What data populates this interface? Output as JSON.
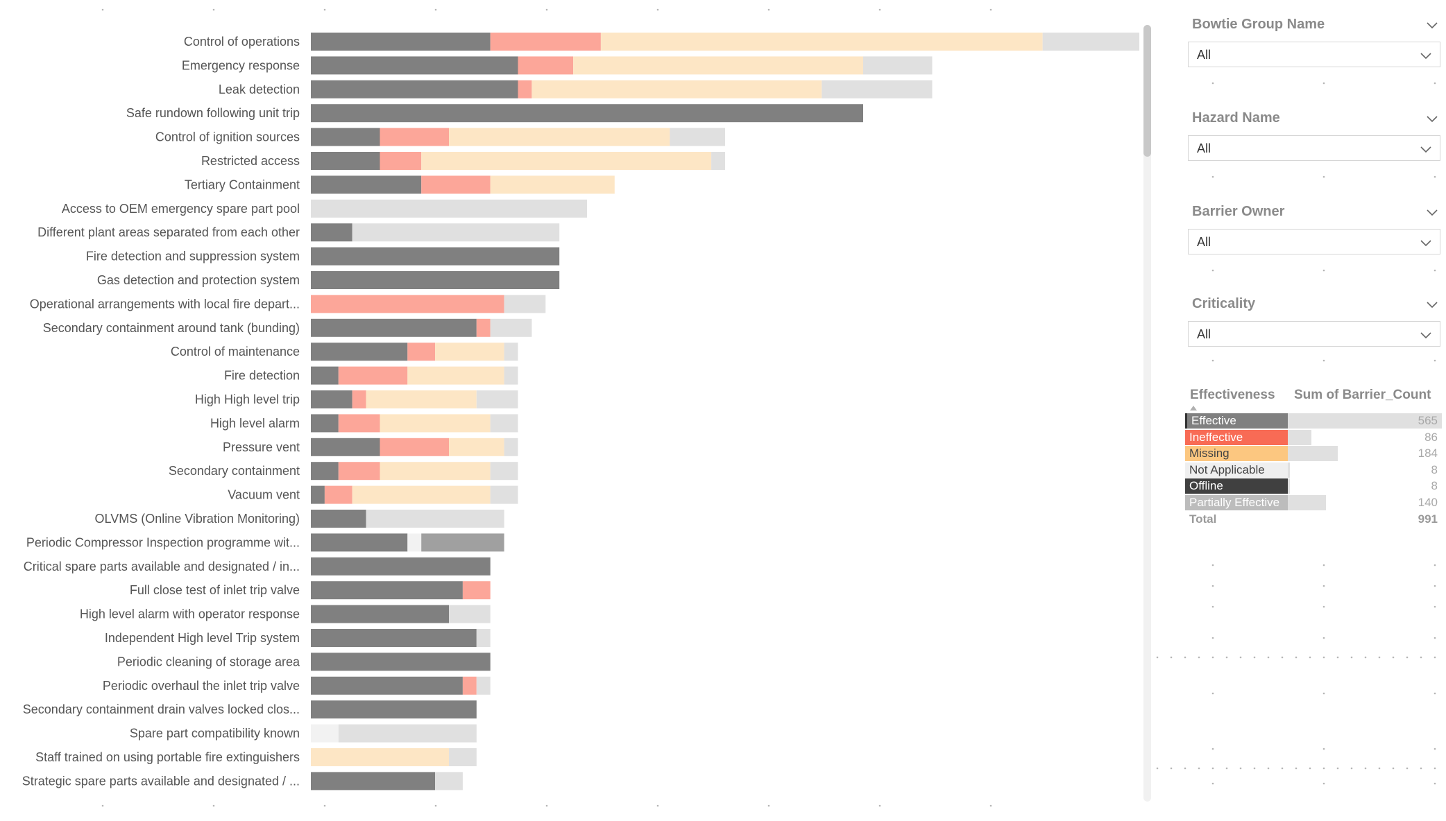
{
  "chart_data": {
    "type": "stacked-bar-horizontal",
    "series": [
      {
        "name": "Effective",
        "color": "#808080"
      },
      {
        "name": "Ineffective",
        "color": "#fca699"
      },
      {
        "name": "Missing",
        "color": "#fde6c5"
      },
      {
        "name": "Not Applicable",
        "color": "#f2f2f2"
      },
      {
        "name": "Offline",
        "color": "#a0a0a0"
      },
      {
        "name": "Partially Effective",
        "color": "#e0e0e0"
      }
    ],
    "categories": [
      {
        "label": "Control of operations",
        "values": [
          13,
          8,
          32,
          0,
          0,
          7
        ]
      },
      {
        "label": "Emergency response",
        "values": [
          15,
          4,
          21,
          0,
          0,
          5
        ]
      },
      {
        "label": "Leak detection",
        "values": [
          15,
          1,
          21,
          0,
          0,
          8
        ]
      },
      {
        "label": "Safe rundown following unit trip",
        "values": [
          40,
          0,
          0,
          0,
          0,
          0
        ]
      },
      {
        "label": "Control of ignition sources",
        "values": [
          5,
          5,
          16,
          0,
          0,
          4
        ]
      },
      {
        "label": "Restricted access",
        "values": [
          5,
          3,
          21,
          0,
          0,
          1
        ]
      },
      {
        "label": "Tertiary Containment",
        "values": [
          8,
          5,
          9,
          0,
          0,
          0
        ]
      },
      {
        "label": "Access to OEM emergency spare part pool",
        "values": [
          0,
          0,
          0,
          0,
          0,
          20
        ]
      },
      {
        "label": "Different plant areas separated from each other",
        "values": [
          3,
          0,
          0,
          0,
          0,
          15
        ]
      },
      {
        "label": "Fire detection and suppression system",
        "values": [
          18,
          0,
          0,
          0,
          0,
          0
        ]
      },
      {
        "label": "Gas detection and protection system",
        "values": [
          18,
          0,
          0,
          0,
          0,
          0
        ]
      },
      {
        "label": "Operational arrangements with local fire depart...",
        "values": [
          0,
          14,
          0,
          0,
          0,
          3
        ]
      },
      {
        "label": "Secondary containment around tank (bunding)",
        "values": [
          12,
          1,
          0,
          0,
          0,
          3
        ]
      },
      {
        "label": "Control of maintenance",
        "values": [
          7,
          2,
          5,
          0,
          0,
          1
        ]
      },
      {
        "label": "Fire detection",
        "values": [
          2,
          5,
          7,
          0,
          0,
          1
        ]
      },
      {
        "label": "High High level trip",
        "values": [
          3,
          1,
          8,
          0,
          0,
          3
        ]
      },
      {
        "label": "High level alarm",
        "values": [
          2,
          3,
          8,
          0,
          0,
          2
        ]
      },
      {
        "label": "Pressure vent",
        "values": [
          5,
          5,
          4,
          0,
          0,
          1
        ]
      },
      {
        "label": "Secondary containment",
        "values": [
          2,
          3,
          8,
          0,
          0,
          2
        ]
      },
      {
        "label": "Vacuum vent",
        "values": [
          1,
          2,
          10,
          0,
          0,
          2
        ]
      },
      {
        "label": "OLVMS (Online Vibration Monitoring)",
        "values": [
          4,
          0,
          0,
          0,
          0,
          10
        ]
      },
      {
        "label": "Periodic Compressor Inspection programme wit...",
        "values": [
          7,
          0,
          0,
          1,
          6,
          0
        ]
      },
      {
        "label": "Critical spare parts available and designated / in...",
        "values": [
          13,
          0,
          0,
          0,
          0,
          0
        ]
      },
      {
        "label": "Full close test of inlet trip valve",
        "values": [
          11,
          2,
          0,
          0,
          0,
          0
        ]
      },
      {
        "label": "High level alarm with operator response",
        "values": [
          10,
          0,
          0,
          0,
          0,
          3
        ]
      },
      {
        "label": "Independent High level Trip system",
        "values": [
          12,
          0,
          0,
          0,
          0,
          1
        ]
      },
      {
        "label": "Periodic cleaning of storage area",
        "values": [
          13,
          0,
          0,
          0,
          0,
          0
        ]
      },
      {
        "label": "Periodic overhaul the inlet trip valve",
        "values": [
          11,
          1,
          0,
          0,
          0,
          1
        ]
      },
      {
        "label": "Secondary containment drain valves locked clos...",
        "values": [
          12,
          0,
          0,
          0,
          0,
          0
        ]
      },
      {
        "label": "Spare part compatibility known",
        "values": [
          0,
          0,
          0,
          2,
          0,
          10
        ]
      },
      {
        "label": "Staff trained on using portable fire extinguishers",
        "values": [
          0,
          0,
          10,
          0,
          0,
          2
        ]
      },
      {
        "label": "Strategic spare parts available and designated / ...",
        "values": [
          9,
          0,
          0,
          0,
          0,
          2
        ]
      }
    ],
    "xlim": [
      0,
      60
    ],
    "grid": false,
    "legend": "none"
  },
  "slicers": [
    {
      "title": "Bowtie Group Name",
      "value": "All"
    },
    {
      "title": "Hazard Name",
      "value": "All"
    },
    {
      "title": "Barrier Owner",
      "value": "All"
    },
    {
      "title": "Criticality",
      "value": "All"
    }
  ],
  "table": {
    "col1": "Effectiveness",
    "col2": "Sum of Barrier_Count",
    "rows": [
      {
        "label": "Effective",
        "count": 565,
        "bg": "#808080",
        "fg": "#ffffff",
        "edge": "#333333"
      },
      {
        "label": "Ineffective",
        "count": 86,
        "bg": "#f86b55",
        "fg": "#ffffff",
        "edge": ""
      },
      {
        "label": "Missing",
        "count": 184,
        "bg": "#fcc780",
        "fg": "#444444",
        "edge": ""
      },
      {
        "label": "Not Applicable",
        "count": 8,
        "bg": "#efefef",
        "fg": "#444444",
        "edge": ""
      },
      {
        "label": "Offline",
        "count": 8,
        "bg": "#404040",
        "fg": "#ffffff",
        "edge": ""
      },
      {
        "label": "Partially Effective",
        "count": 140,
        "bg": "#bcbcbc",
        "fg": "#ffffff",
        "edge": ""
      }
    ],
    "total_label": "Total",
    "total": 991
  }
}
